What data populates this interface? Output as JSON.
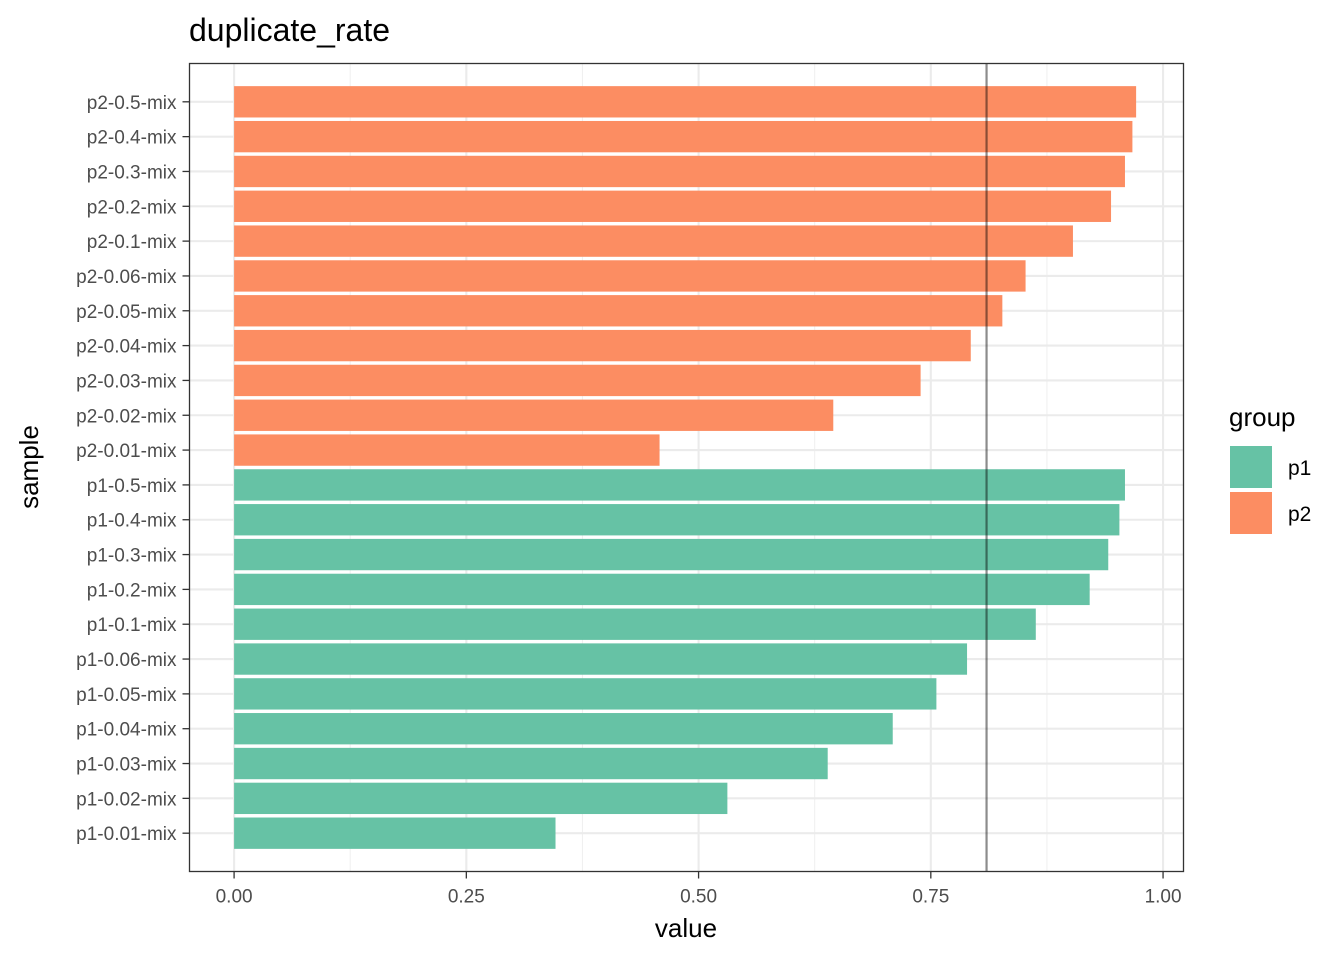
{
  "chart_data": {
    "type": "bar",
    "orientation": "horizontal",
    "title": "duplicate_rate",
    "xlabel": "value",
    "ylabel": "sample",
    "xlim": [
      -0.048,
      1.022
    ],
    "x_ticks": [
      0.0,
      0.25,
      0.5,
      0.75,
      1.0
    ],
    "x_tick_labels": [
      "0.00",
      "0.25",
      "0.50",
      "0.75",
      "1.00"
    ],
    "grid": true,
    "reference_line": 0.81,
    "legend": {
      "title": "group",
      "placement": "right",
      "entries": [
        {
          "label": "p1",
          "color": "#66c2a5"
        },
        {
          "label": "p2",
          "color": "#fc8d62"
        }
      ]
    },
    "categories": [
      "p1-0.01-mix",
      "p1-0.02-mix",
      "p1-0.03-mix",
      "p1-0.04-mix",
      "p1-0.05-mix",
      "p1-0.06-mix",
      "p1-0.1-mix",
      "p1-0.2-mix",
      "p1-0.3-mix",
      "p1-0.4-mix",
      "p1-0.5-mix",
      "p2-0.01-mix",
      "p2-0.02-mix",
      "p2-0.03-mix",
      "p2-0.04-mix",
      "p2-0.05-mix",
      "p2-0.06-mix",
      "p2-0.1-mix",
      "p2-0.2-mix",
      "p2-0.3-mix",
      "p2-0.4-mix",
      "p2-0.5-mix"
    ],
    "groups": [
      "p1",
      "p1",
      "p1",
      "p1",
      "p1",
      "p1",
      "p1",
      "p1",
      "p1",
      "p1",
      "p1",
      "p2",
      "p2",
      "p2",
      "p2",
      "p2",
      "p2",
      "p2",
      "p2",
      "p2",
      "p2",
      "p2"
    ],
    "values": [
      0.346,
      0.531,
      0.639,
      0.709,
      0.756,
      0.789,
      0.863,
      0.921,
      0.941,
      0.953,
      0.959,
      0.458,
      0.645,
      0.739,
      0.793,
      0.827,
      0.852,
      0.903,
      0.944,
      0.959,
      0.967,
      0.971
    ]
  }
}
